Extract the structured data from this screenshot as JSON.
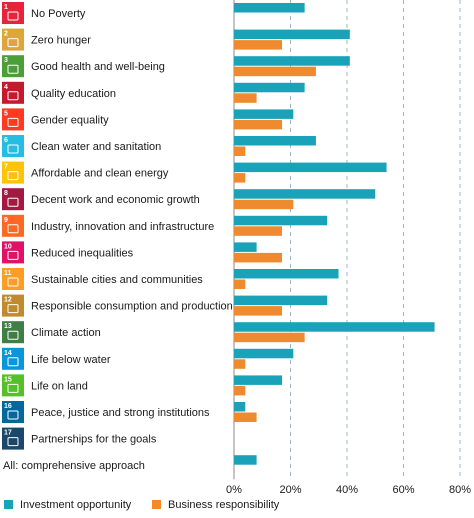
{
  "chart_data": {
    "type": "bar",
    "orientation": "horizontal",
    "categories": [
      "No Poverty",
      "Zero hunger",
      "Good health and well-being",
      "Quality education",
      "Gender equality",
      "Clean water and sanitation",
      "Affordable and clean energy",
      "Decent work and economic growth",
      "Industry, innovation and infrastructure",
      "Reduced inequalities",
      "Sustainable cities and communities",
      "Responsible consumption and production",
      "Climate action",
      "Life below water",
      "Life on land",
      "Peace, justice and strong institutions",
      "Partnerships for the goals",
      "All: comprehensive approach"
    ],
    "icon_colors": [
      "#e5243b",
      "#dda63a",
      "#4c9f38",
      "#c5192d",
      "#ff3a21",
      "#26bde2",
      "#fcc30b",
      "#a21942",
      "#fd6925",
      "#dd1367",
      "#fd9d24",
      "#bf8b2e",
      "#3f7e44",
      "#0a97d9",
      "#56c02b",
      "#00689d",
      "#19486a",
      null
    ],
    "series": [
      {
        "name": "Investment opportunity",
        "color": "#1aa3b8",
        "values": [
          25,
          41,
          41,
          25,
          21,
          29,
          54,
          50,
          33,
          8,
          37,
          33,
          71,
          21,
          17,
          4,
          0,
          8
        ]
      },
      {
        "name": "Business responsibility",
        "color": "#f08a2e",
        "values": [
          0,
          17,
          29,
          8,
          17,
          4,
          4,
          21,
          17,
          17,
          4,
          17,
          25,
          4,
          4,
          8,
          0,
          0
        ]
      }
    ],
    "xlim": [
      0,
      80
    ],
    "xticks": [
      "0%",
      "20%",
      "40%",
      "60%",
      "80%"
    ],
    "grid": "vertical dashed"
  }
}
